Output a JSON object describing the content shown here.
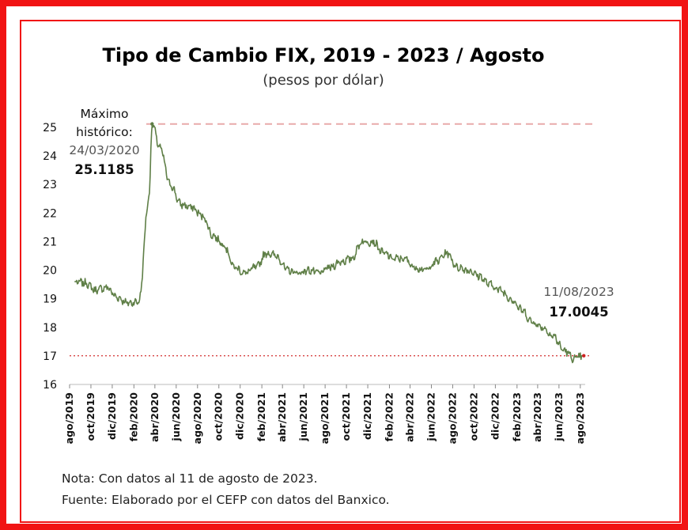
{
  "chart_data": {
    "type": "line",
    "title": "Tipo de Cambio FIX, 2019 - 2023 / Agosto",
    "subtitle": "(pesos por dólar)",
    "ylim": [
      16,
      25.3
    ],
    "yticks": [
      16,
      17,
      18,
      19,
      20,
      21,
      22,
      23,
      24,
      25
    ],
    "x_tick_labels": [
      "ago/2019",
      "oct/2019",
      "dic/2019",
      "feb/2020",
      "abr/2020",
      "jun/2020",
      "ago/2020",
      "oct/2020",
      "dic/2020",
      "feb/2021",
      "abr/2021",
      "jun/2021",
      "ago/2021",
      "oct/2021",
      "dic/2021",
      "feb/2022",
      "abr/2022",
      "jun/2022",
      "ago/2022",
      "oct/2022",
      "dic/2022",
      "feb/2023",
      "abr/2023",
      "jun/2023",
      "ago/2023"
    ],
    "series": [
      {
        "color": "#5f7f47",
        "x": [
          "2019-08",
          "2019-09",
          "2019-10",
          "2019-11",
          "2019-12",
          "2020-01",
          "2020-02",
          "2020-03",
          "2020-03-24",
          "2020-04",
          "2020-05",
          "2020-06",
          "2020-07",
          "2020-08",
          "2020-09",
          "2020-10",
          "2020-11",
          "2020-12",
          "2021-01",
          "2021-02",
          "2021-03",
          "2021-04",
          "2021-05",
          "2021-06",
          "2021-07",
          "2021-08",
          "2021-09",
          "2021-10",
          "2021-11",
          "2021-12",
          "2022-01",
          "2022-02",
          "2022-03",
          "2022-04",
          "2022-05",
          "2022-06",
          "2022-07",
          "2022-08",
          "2022-09",
          "2022-10",
          "2022-11",
          "2022-12",
          "2023-01",
          "2023-02",
          "2023-03",
          "2023-04",
          "2023-05",
          "2023-06",
          "2023-07",
          "2023-08-11"
        ],
        "values": [
          19.6,
          19.55,
          19.3,
          19.4,
          19.05,
          18.85,
          18.9,
          22.5,
          25.1185,
          24.3,
          23.0,
          22.3,
          22.2,
          21.9,
          21.2,
          20.9,
          20.1,
          19.9,
          20.1,
          20.6,
          20.5,
          20.0,
          19.9,
          20.0,
          19.9,
          20.1,
          20.3,
          20.4,
          21.0,
          21.0,
          20.6,
          20.4,
          20.4,
          20.1,
          20.0,
          20.3,
          20.6,
          20.1,
          20.0,
          19.8,
          19.5,
          19.3,
          19.0,
          18.6,
          18.2,
          18.0,
          17.7,
          17.2,
          16.9,
          17.0045
        ]
      }
    ],
    "reference_lines": [
      {
        "value": 25.1185,
        "style": "dashed",
        "color": "#e8aaaa"
      },
      {
        "value": 17.0045,
        "style": "dotted",
        "color": "#d23030"
      }
    ],
    "annotations": {
      "max_label_1": "Máximo",
      "max_label_2": "histórico:",
      "max_date": "24/03/2020",
      "max_value": "25.1185",
      "last_date": "11/08/2023",
      "last_value": "17.0045"
    }
  },
  "notes": {
    "nota": "Nota: Con datos al 11 de agosto de 2023.",
    "fuente": "Fuente: Elaborado por el CEFP con datos del Banxico."
  }
}
